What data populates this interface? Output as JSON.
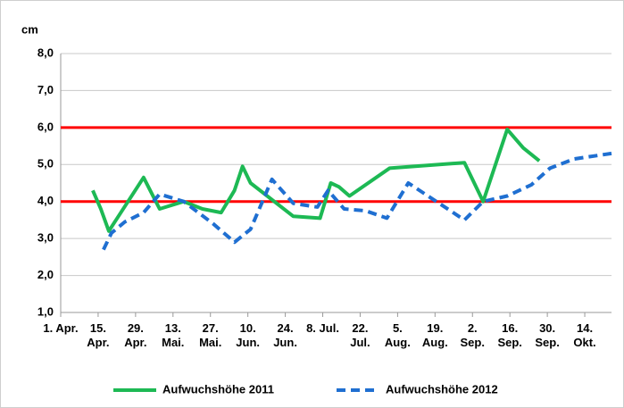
{
  "chart_data": {
    "type": "line",
    "y_label": "cm",
    "xlim": [
      0,
      206
    ],
    "xticks": [
      {
        "value": 0,
        "label": "1. Apr."
      },
      {
        "value": 14,
        "label": "15. Apr."
      },
      {
        "value": 28,
        "label": "29. Apr."
      },
      {
        "value": 42,
        "label": "13. Mai."
      },
      {
        "value": 56,
        "label": "27. Mai."
      },
      {
        "value": 70,
        "label": "10. Jun."
      },
      {
        "value": 84,
        "label": "24. Jun."
      },
      {
        "value": 98,
        "label": "8. Jul."
      },
      {
        "value": 112,
        "label": "22. Jul."
      },
      {
        "value": 126,
        "label": "5. Aug."
      },
      {
        "value": 140,
        "label": "19. Aug."
      },
      {
        "value": 154,
        "label": "2. Sep."
      },
      {
        "value": 168,
        "label": "16. Sep."
      },
      {
        "value": 182,
        "label": "30. Sep."
      },
      {
        "value": 196,
        "label": "14. Okt."
      }
    ],
    "ylim": [
      1,
      8
    ],
    "yticks": [
      {
        "value": 1,
        "label": "1,0"
      },
      {
        "value": 2,
        "label": "2,0"
      },
      {
        "value": 3,
        "label": "3,0"
      },
      {
        "value": 4,
        "label": "4,0"
      },
      {
        "value": 5,
        "label": "5,0"
      },
      {
        "value": 6,
        "label": "6,0"
      },
      {
        "value": 7,
        "label": "7,0"
      },
      {
        "value": 8,
        "label": "8,0"
      }
    ],
    "grid": true,
    "reference_lines": [
      4,
      6
    ],
    "reference_color": "#ff0000",
    "legend": "bottom",
    "series": [
      {
        "name": "Aufwuchshöhe 2011",
        "color": "#1db954",
        "dash": false,
        "x": [
          12,
          15,
          18,
          31,
          37,
          46,
          53,
          60,
          65,
          68,
          71,
          87,
          97,
          101,
          104,
          108,
          123,
          151,
          158,
          167,
          173,
          179
        ],
        "values": [
          4.3,
          3.8,
          3.2,
          4.65,
          3.8,
          4.0,
          3.8,
          3.7,
          4.3,
          4.95,
          4.5,
          3.6,
          3.55,
          4.5,
          4.4,
          4.15,
          4.9,
          5.05,
          4.0,
          5.95,
          5.45,
          5.1
        ]
      },
      {
        "name": "Aufwuchshöhe 2012",
        "color": "#1f6fd1",
        "dash": true,
        "x": [
          16,
          19,
          24,
          31,
          37,
          46,
          57,
          65,
          71,
          79,
          87,
          96,
          100,
          106,
          114,
          122,
          130,
          151,
          158,
          167,
          176,
          183,
          192,
          206
        ],
        "values": [
          2.7,
          3.15,
          3.45,
          3.7,
          4.2,
          4.0,
          3.4,
          2.9,
          3.25,
          4.6,
          3.95,
          3.85,
          4.3,
          3.8,
          3.75,
          3.55,
          4.5,
          3.5,
          4.0,
          4.15,
          4.45,
          4.9,
          5.15,
          5.3
        ]
      }
    ]
  }
}
